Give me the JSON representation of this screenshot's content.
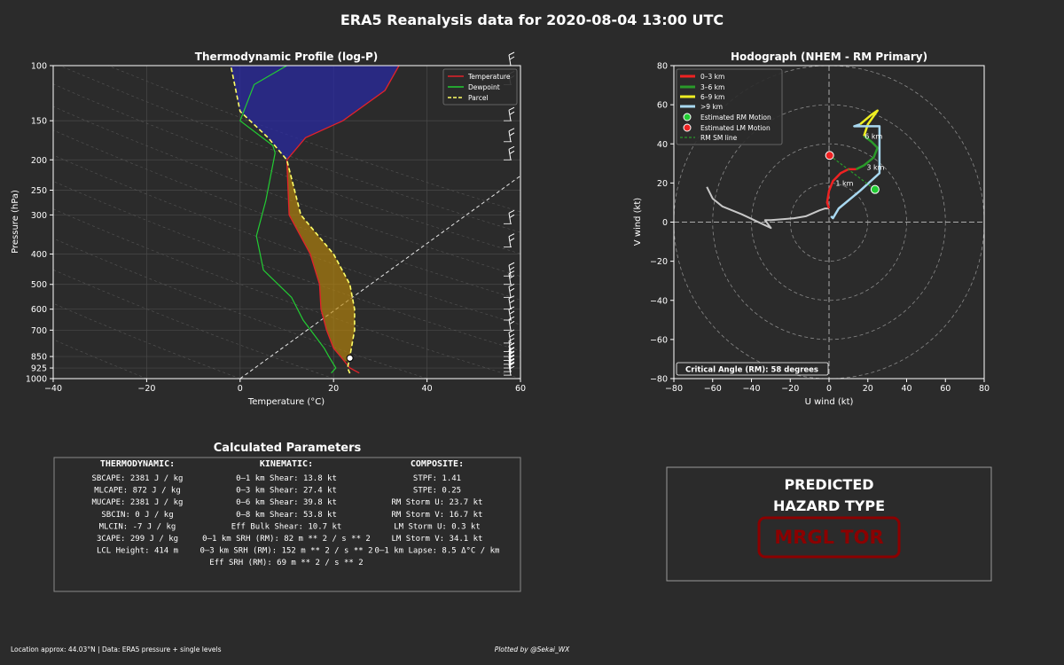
{
  "header": {
    "title": "ERA5 Reanalysis data for 2020-08-04 13:00 UTC"
  },
  "footer": {
    "location": "Location approx: 44.03°N | Data: ERA5 pressure + single levels",
    "credit": "Plotted by @Sekai_WX"
  },
  "colors": {
    "background": "#2b2b2b",
    "temperature": "#e3222a",
    "dewpoint": "#22cc33",
    "parcel": "#ffff66",
    "cape": "#b8860b",
    "cin": "#2a2aa0",
    "km03": "#ee2222",
    "km36": "#2a9a2a",
    "km69": "#eeee22",
    "km9plus": "#a8d8f0",
    "rm": "#22cc33",
    "lm": "#ee2222",
    "hazard": "#8b0000",
    "lowlevel": "#c8c8c8"
  },
  "skewt": {
    "title": "Thermodynamic Profile (log-P)",
    "xlabel": "Temperature (°C)",
    "ylabel": "Pressure (hPa)",
    "legend": [
      "Temperature",
      "Dewpoint",
      "Parcel"
    ]
  },
  "hodograph": {
    "title": "Hodograph (NHEM - RM Primary)",
    "xlabel": "U wind (kt)",
    "ylabel": "V wind (kt)",
    "legend": [
      "0–3 km",
      "3–6 km",
      "6–9 km",
      ">9 km",
      "Estimated RM Motion",
      "Estimated LM Motion",
      "RM SM line"
    ],
    "critical_angle": "Critical Angle (RM): 58 degrees",
    "km_labels": [
      "1 km",
      "3 km",
      "6 km"
    ]
  },
  "params": {
    "title": "Calculated Parameters",
    "thermo_head": "THERMODYNAMIC:",
    "kin_head": "KINEMATIC:",
    "comp_head": "COMPOSITE:",
    "thermo": [
      "SBCAPE: 2381 J / kg",
      "MLCAPE: 872 J / kg",
      "MUCAPE: 2381 J / kg",
      "SBCIN: 0 J / kg",
      "MLCIN: -7 J / kg",
      "3CAPE: 299 J / kg",
      "LCL Height: 414 m"
    ],
    "kin": [
      "0–1 km Shear: 13.8 kt",
      "0–3 km Shear: 27.4 kt",
      "0–6 km Shear: 39.8 kt",
      "0–8 km Shear: 53.8 kt",
      "Eff Bulk Shear: 10.7 kt",
      "0–1 km SRH (RM): 82 m ** 2 / s ** 2",
      "0–3 km SRH (RM): 152 m ** 2 / s ** 2",
      "Eff SRH (RM): 69 m ** 2 / s ** 2"
    ],
    "comp": [
      "STPF: 1.41",
      "STPE: 0.25",
      "RM Storm U: 23.7 kt",
      "RM Storm V: 16.7 kt",
      "LM Storm U: 0.3 kt",
      "LM Storm V: 34.1 kt",
      "0–1 km Lapse: 8.5 Δ°C / km"
    ]
  },
  "hazard": {
    "line1": "PREDICTED",
    "line2": "HAZARD TYPE",
    "value": "MRGL TOR"
  },
  "chart_data": [
    {
      "type": "line",
      "title": "Thermodynamic Profile (log-P)",
      "xlabel": "Temperature (°C)",
      "ylabel": "Pressure (hPa)",
      "xlim": [
        -40,
        60
      ],
      "ylim": [
        1000,
        100
      ],
      "yscale": "log",
      "xticks": [
        -40,
        -20,
        0,
        20,
        40,
        60
      ],
      "yticks": [
        100,
        150,
        200,
        250,
        300,
        400,
        500,
        600,
        700,
        850,
        925,
        1000
      ],
      "legend_position": "top-right",
      "series": [
        {
          "name": "Temperature",
          "points": [
            [
              25.5,
              960
            ],
            [
              23.5,
              925
            ],
            [
              21.5,
              850
            ],
            [
              20.0,
              800
            ],
            [
              18.5,
              700
            ],
            [
              17.3,
              600
            ],
            [
              17.0,
              500
            ],
            [
              15.0,
              400
            ],
            [
              10.5,
              300
            ],
            [
              10.0,
              200
            ],
            [
              14.0,
              170
            ],
            [
              22.0,
              150
            ],
            [
              31.0,
              120
            ],
            [
              34.0,
              100
            ]
          ]
        },
        {
          "name": "Dewpoint",
          "points": [
            [
              19.5,
              960
            ],
            [
              20.5,
              925
            ],
            [
              19.0,
              850
            ],
            [
              18.0,
              800
            ],
            [
              13.5,
              650
            ],
            [
              11.0,
              550
            ],
            [
              5.0,
              450
            ],
            [
              3.5,
              350
            ],
            [
              5.5,
              270
            ],
            [
              7.5,
              190
            ],
            [
              7.0,
              180
            ],
            [
              0,
              150
            ],
            [
              3.0,
              115
            ],
            [
              10.0,
              100
            ]
          ]
        },
        {
          "name": "Parcel",
          "points": [
            [
              23.5,
              962
            ],
            [
              23.0,
              925
            ],
            [
              23.5,
              850
            ],
            [
              24.5,
              700
            ],
            [
              24.5,
              600
            ],
            [
              23.5,
              500
            ],
            [
              20.0,
              400
            ],
            [
              13.0,
              300
            ],
            [
              10.0,
              200
            ],
            [
              6.0,
              170
            ],
            [
              0,
              140
            ],
            [
              -2.0,
              100
            ]
          ]
        }
      ],
      "parcel_start": [
        23.5,
        860
      ]
    },
    {
      "type": "line",
      "title": "Hodograph (NHEM - RM Primary)",
      "xlabel": "U wind (kt)",
      "ylabel": "V wind (kt)",
      "xlim": [
        -80,
        80
      ],
      "ylim": [
        -80,
        80
      ],
      "xticks": [
        -80,
        -60,
        -40,
        -20,
        0,
        20,
        40,
        60,
        80
      ],
      "yticks": [
        -80,
        -60,
        -40,
        -20,
        0,
        20,
        40,
        60,
        80
      ],
      "rings": [
        20,
        40,
        60,
        80
      ],
      "legend_position": "top-left",
      "series": [
        {
          "name": "low-level",
          "points": [
            [
              -63,
              18
            ],
            [
              -60,
              12
            ],
            [
              -55,
              8
            ],
            [
              -45,
              4
            ],
            [
              -30,
              -3
            ],
            [
              -33,
              1
            ],
            [
              -30,
              1
            ],
            [
              -18,
              2
            ],
            [
              -12,
              3
            ],
            [
              -5,
              6
            ],
            [
              -2,
              7
            ],
            [
              0,
              7
            ]
          ]
        },
        {
          "name": "0–3 km",
          "points": [
            [
              0,
              7
            ],
            [
              -1,
              10
            ],
            [
              0,
              16
            ],
            [
              2,
              21
            ],
            [
              6,
              25
            ],
            [
              10,
              27
            ],
            [
              14,
              27
            ]
          ]
        },
        {
          "name": "3–6 km",
          "points": [
            [
              14,
              27
            ],
            [
              18,
              29
            ],
            [
              23,
              33
            ],
            [
              25,
              38
            ],
            [
              22,
              41
            ],
            [
              18,
              44
            ]
          ]
        },
        {
          "name": "6–9 km",
          "points": [
            [
              18,
              44
            ],
            [
              20,
              50
            ],
            [
              25,
              57
            ],
            [
              22,
              55
            ],
            [
              16,
              50
            ]
          ]
        },
        {
          "name": ">9 km",
          "points": [
            [
              16,
              50
            ],
            [
              13,
              49
            ],
            [
              20,
              49
            ],
            [
              26,
              49
            ],
            [
              26,
              36
            ],
            [
              26,
              25
            ],
            [
              16,
              16
            ],
            [
              5,
              7
            ],
            [
              2,
              2
            ],
            [
              1,
              3
            ]
          ]
        }
      ],
      "rm": [
        23.7,
        16.7
      ],
      "lm": [
        0.3,
        34.1
      ],
      "sm_line": [
        [
          0.3,
          34.1
        ],
        [
          23.7,
          16.7
        ]
      ],
      "km_points": [
        [
          2,
          20
        ],
        [
          18,
          28
        ],
        [
          17,
          44
        ]
      ]
    }
  ]
}
